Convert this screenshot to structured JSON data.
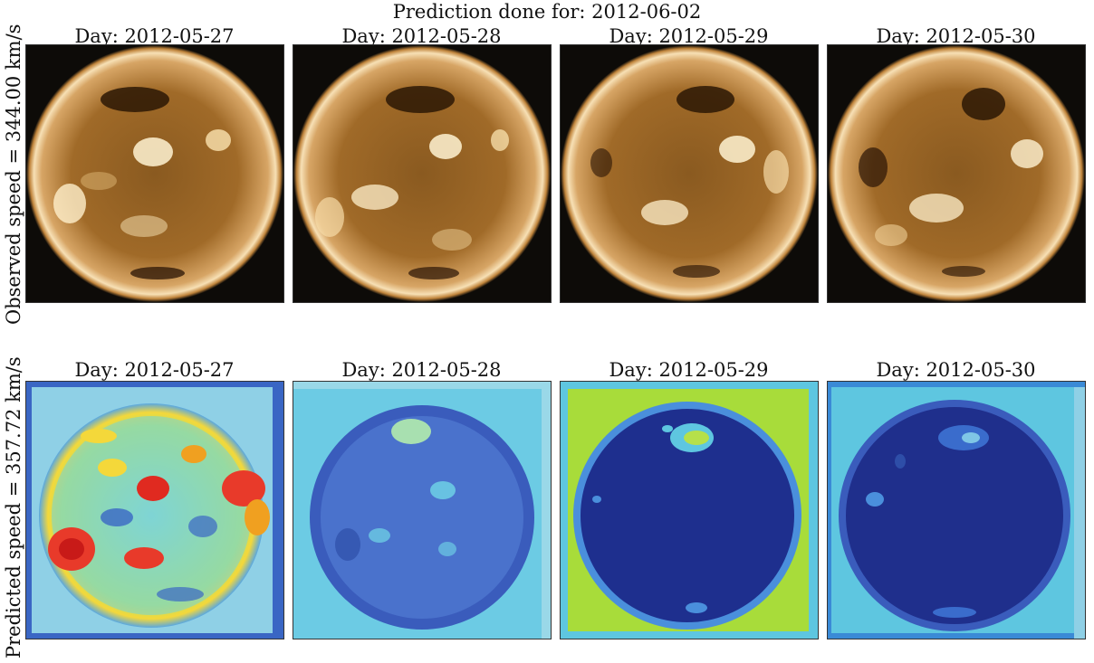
{
  "figure": {
    "title": "Prediction done for: 2012-06-02",
    "rows": [
      {
        "ylabel": "Observed speed = 344.00 km/s",
        "kind": "euv",
        "panels": [
          {
            "title": "Day: 2012-05-27"
          },
          {
            "title": "Day: 2012-05-28"
          },
          {
            "title": "Day: 2012-05-29"
          },
          {
            "title": "Day: 2012-05-30"
          }
        ]
      },
      {
        "ylabel": "Predicted speed = 357.72 km/s",
        "kind": "saliency",
        "panels": [
          {
            "title": "Day: 2012-05-27"
          },
          {
            "title": "Day: 2012-05-28"
          },
          {
            "title": "Day: 2012-05-29"
          },
          {
            "title": "Day: 2012-05-30"
          }
        ]
      }
    ]
  }
}
